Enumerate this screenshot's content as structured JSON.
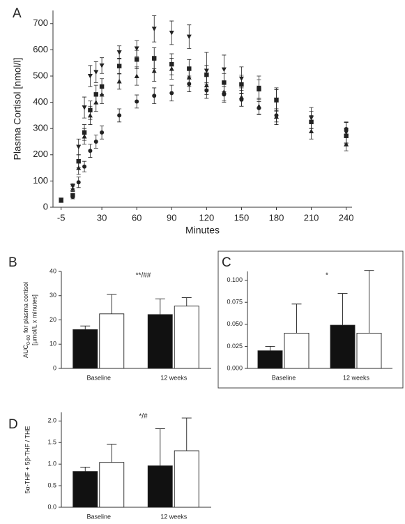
{
  "chart_data": [
    {
      "type": "line",
      "panel_label": "A",
      "xlabel": "Minutes",
      "ylabel": "Plasma Cortisol [nmol/l]",
      "x": [
        -5,
        5,
        10,
        15,
        20,
        25,
        30,
        45,
        60,
        75,
        90,
        105,
        120,
        135,
        150,
        165,
        180,
        210,
        240
      ],
      "xlim": [
        -12,
        245
      ],
      "xticks": [
        -5,
        30,
        60,
        90,
        120,
        150,
        180,
        210,
        240
      ],
      "ylim": [
        0,
        750
      ],
      "yticks": [
        0,
        100,
        200,
        300,
        400,
        500,
        600,
        700
      ],
      "series": [
        {
          "color": "#222",
          "marker": "triangle-down",
          "dash": false,
          "values": [
            28,
            80,
            230,
            380,
            500,
            515,
            540,
            590,
            605,
            680,
            665,
            650,
            520,
            525,
            490,
            455,
            410,
            340,
            285
          ],
          "errors": [
            5,
            10,
            30,
            40,
            40,
            40,
            30,
            25,
            30,
            50,
            45,
            45,
            70,
            55,
            45,
            45,
            45,
            40,
            40
          ]
        },
        {
          "color": "#222",
          "marker": "square",
          "dash": false,
          "values": [
            28,
            45,
            175,
            285,
            370,
            430,
            460,
            538,
            563,
            568,
            545,
            528,
            505,
            475,
            468,
            450,
            408,
            325,
            272
          ],
          "errors": [
            5,
            8,
            25,
            30,
            35,
            35,
            30,
            30,
            35,
            40,
            40,
            35,
            35,
            35,
            35,
            35,
            40,
            40,
            30
          ]
        },
        {
          "color": "#222",
          "marker": "triangle-up",
          "dash": true,
          "values": [
            25,
            70,
            150,
            270,
            350,
            400,
            430,
            480,
            500,
            520,
            528,
            495,
            465,
            440,
            420,
            385,
            345,
            290,
            240
          ],
          "errors": [
            5,
            10,
            25,
            30,
            35,
            35,
            35,
            30,
            35,
            40,
            40,
            35,
            35,
            35,
            35,
            30,
            30,
            30,
            25
          ]
        },
        {
          "color": "#222",
          "marker": "circle",
          "dash": true,
          "values": [
            28,
            40,
            95,
            155,
            215,
            250,
            285,
            350,
            403,
            425,
            435,
            470,
            445,
            430,
            410,
            378,
            350,
            325,
            298
          ],
          "errors": [
            5,
            8,
            20,
            20,
            25,
            25,
            25,
            25,
            25,
            30,
            30,
            30,
            30,
            30,
            25,
            25,
            25,
            25,
            25
          ]
        }
      ]
    },
    {
      "type": "bar",
      "panel_label": "B",
      "annotation": "**/##",
      "ylabel": {
        "main": "AUC",
        "sub": "0-60",
        "rest": "for plasma cortisol",
        "line2": "[µmol/L x minutes]"
      },
      "categories": [
        "Baseline",
        "12 weeks"
      ],
      "ylim": [
        0,
        40
      ],
      "yticks": [
        0,
        10,
        20,
        30,
        40
      ],
      "series": [
        {
          "color": "#111",
          "values": [
            16,
            22.2
          ],
          "errors": [
            1.5,
            6.5
          ]
        },
        {
          "color": "#fff",
          "values": [
            22.5,
            25.7
          ],
          "errors": [
            8,
            3.5
          ]
        }
      ]
    },
    {
      "type": "bar",
      "panel_label": "C",
      "annotation": "*",
      "frame": true,
      "categories": [
        "Baseline",
        "12 weeks"
      ],
      "ylim": [
        0,
        0.11
      ],
      "yticks": [
        {
          "value": 0,
          "label": "0.000"
        },
        {
          "value": 0.025,
          "label": "0.025"
        },
        {
          "value": 0.05,
          "label": "0.050"
        },
        {
          "value": 0.075,
          "label": "0.075"
        },
        {
          "value": 0.1,
          "label": "0.100"
        }
      ],
      "series": [
        {
          "color": "#111",
          "values": [
            0.02,
            0.049
          ],
          "errors": [
            0.005,
            0.036
          ]
        },
        {
          "color": "#fff",
          "values": [
            0.04,
            0.04
          ],
          "errors": [
            0.033,
            0.071
          ]
        }
      ]
    },
    {
      "type": "bar",
      "panel_label": "D",
      "annotation": "*/#",
      "ylabel": "5α-THF + 5β-THF / THE",
      "categories": [
        "Baseline",
        "12 weeks"
      ],
      "ylim": [
        0,
        2.2
      ],
      "yticks": [
        {
          "value": 0,
          "label": "0.0"
        },
        0.5,
        {
          "value": 1,
          "label": "1.0"
        },
        1.5,
        {
          "value": 2,
          "label": "2.0"
        }
      ],
      "series": [
        {
          "color": "#111",
          "values": [
            0.83,
            0.96
          ],
          "errors": [
            0.1,
            0.86
          ]
        },
        {
          "color": "#fff",
          "values": [
            1.04,
            1.31
          ],
          "errors": [
            0.42,
            0.76
          ]
        }
      ]
    }
  ]
}
